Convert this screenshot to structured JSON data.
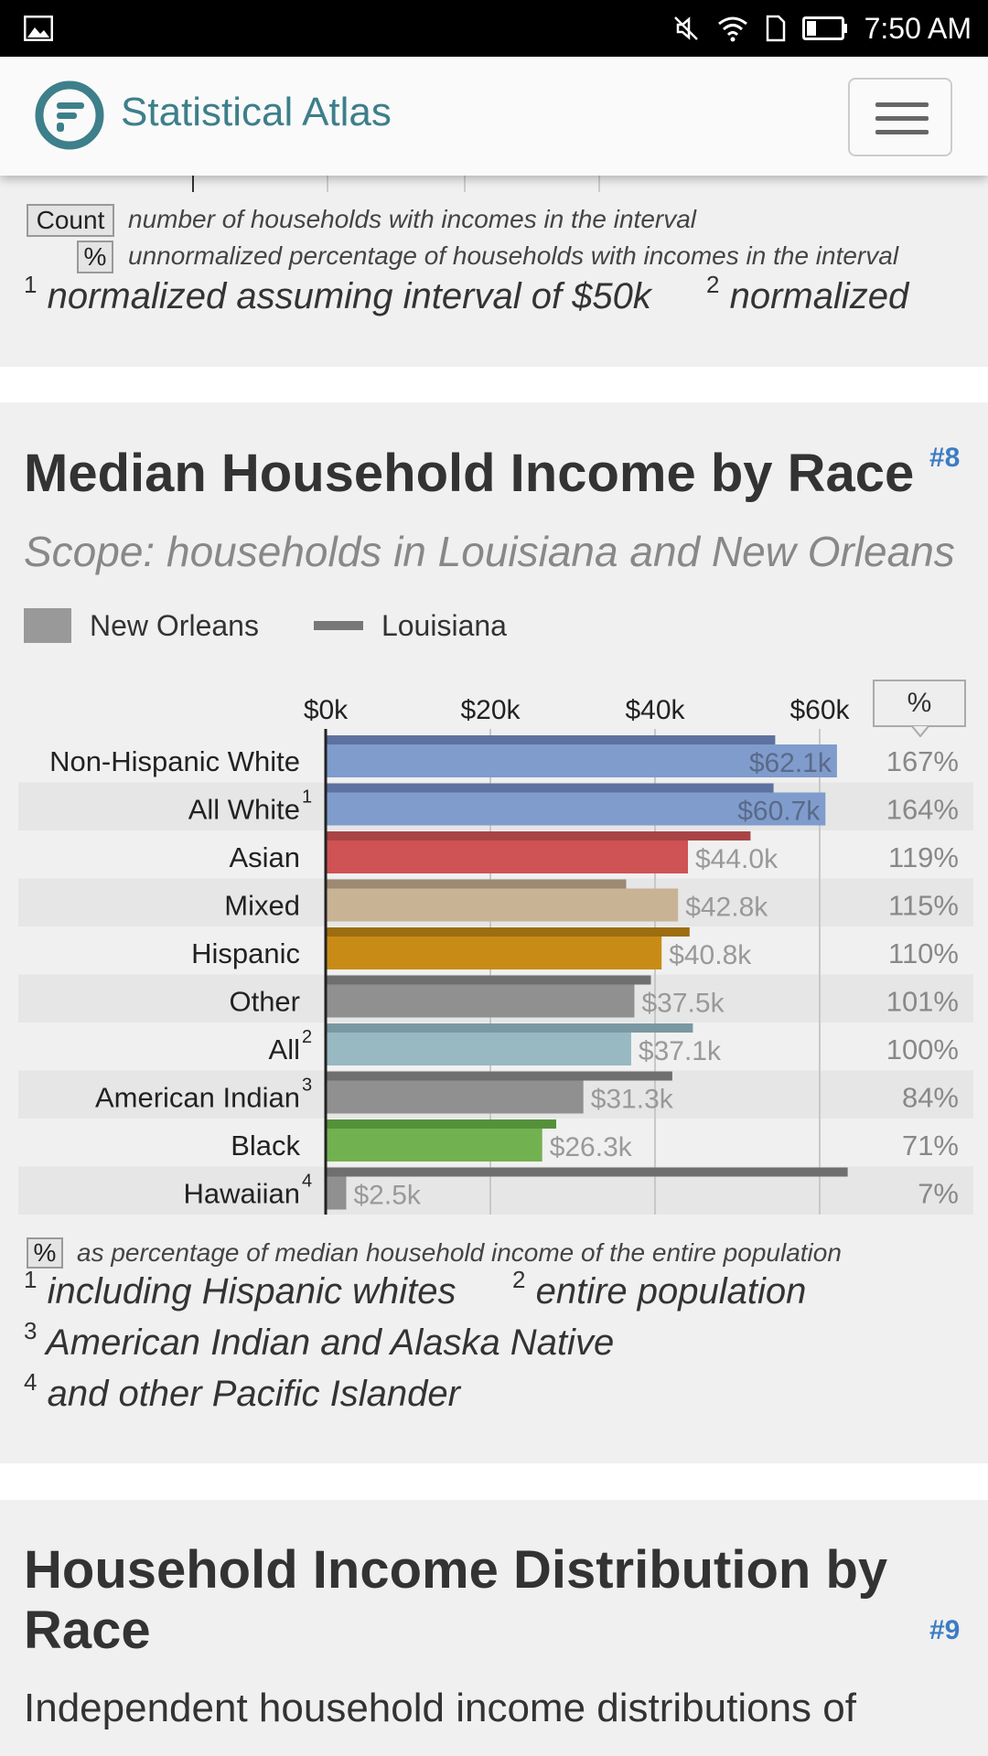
{
  "status_bar": {
    "time": "7:50 AM"
  },
  "navbar": {
    "brand": "Statistical Atlas"
  },
  "prev_section": {
    "count_btn": "Count",
    "count_desc": "number of households with incomes in the interval",
    "pct_btn": "%",
    "pct_desc": "unnormalized percentage of households with incomes in the interval",
    "fn1_num": "1",
    "fn1_text": "normalized assuming interval of $50k",
    "fn2_num": "2",
    "fn2_text": "normalized"
  },
  "section8": {
    "title": "Median Household Income by Race",
    "anchor": "#8",
    "scope": "Scope: households in Louisiana and New Orleans",
    "legend": {
      "bar_label": "New Orleans",
      "line_label": "Louisiana"
    },
    "pct_toggle": "%",
    "footnote_btn": "%",
    "footnote_desc": "as percentage of median household income of the entire population",
    "fn1_num": "1",
    "fn1_text": "including Hispanic whites",
    "fn2_num": "2",
    "fn2_text": "entire population",
    "fn3_num": "3",
    "fn3_text": "American Indian and Alaska Native",
    "fn4_num": "4",
    "fn4_text": "and other Pacific Islander"
  },
  "chart_data": {
    "type": "bar",
    "title": "Median Household Income by Race",
    "xlabel": "",
    "ylabel": "",
    "x_ticks": [
      "$0k",
      "$20k",
      "$40k",
      "$60k"
    ],
    "xlim": [
      0,
      80
    ],
    "categories": [
      "Non-Hispanic White",
      "All White",
      "Asian",
      "Mixed",
      "Hispanic",
      "Other",
      "All",
      "American Indian",
      "Black",
      "Hawaiian"
    ],
    "superscripts": [
      "",
      "1",
      "",
      "",
      "",
      "",
      "2",
      "3",
      "",
      "4"
    ],
    "series": [
      {
        "name": "New Orleans",
        "values": [
          62.1,
          60.7,
          44.0,
          42.8,
          40.8,
          37.5,
          37.1,
          31.3,
          26.3,
          2.5
        ],
        "labels": [
          "$62.1k",
          "$60.7k",
          "$44.0k",
          "$42.8k",
          "$40.8k",
          "$37.5k",
          "$37.1k",
          "$31.3k",
          "$26.3k",
          "$2.5k"
        ],
        "colors": [
          "#7f9ccc",
          "#7f9ccc",
          "#cf5254",
          "#c8b395",
          "#c88c16",
          "#909090",
          "#98b8c2",
          "#909090",
          "#72b150",
          "#909090"
        ]
      },
      {
        "name": "Louisiana",
        "values": [
          54.6,
          54.4,
          51.6,
          36.5,
          44.2,
          39.5,
          44.6,
          42.1,
          28.0,
          63.4
        ],
        "colors": [
          "#5d72a0",
          "#5d72a0",
          "#a84446",
          "#9c8a72",
          "#9c6d11",
          "#6f6f6f",
          "#7a98a2",
          "#6f6f6f",
          "#55913a",
          "#6f6f6f"
        ]
      }
    ],
    "percentages": [
      "167%",
      "164%",
      "119%",
      "115%",
      "110%",
      "101%",
      "100%",
      "84%",
      "71%",
      "7%"
    ]
  },
  "section9": {
    "title_line1": "Household Income Distribution by",
    "title_line2": "Race",
    "anchor": "#9",
    "desc": "Independent household income distributions of"
  }
}
